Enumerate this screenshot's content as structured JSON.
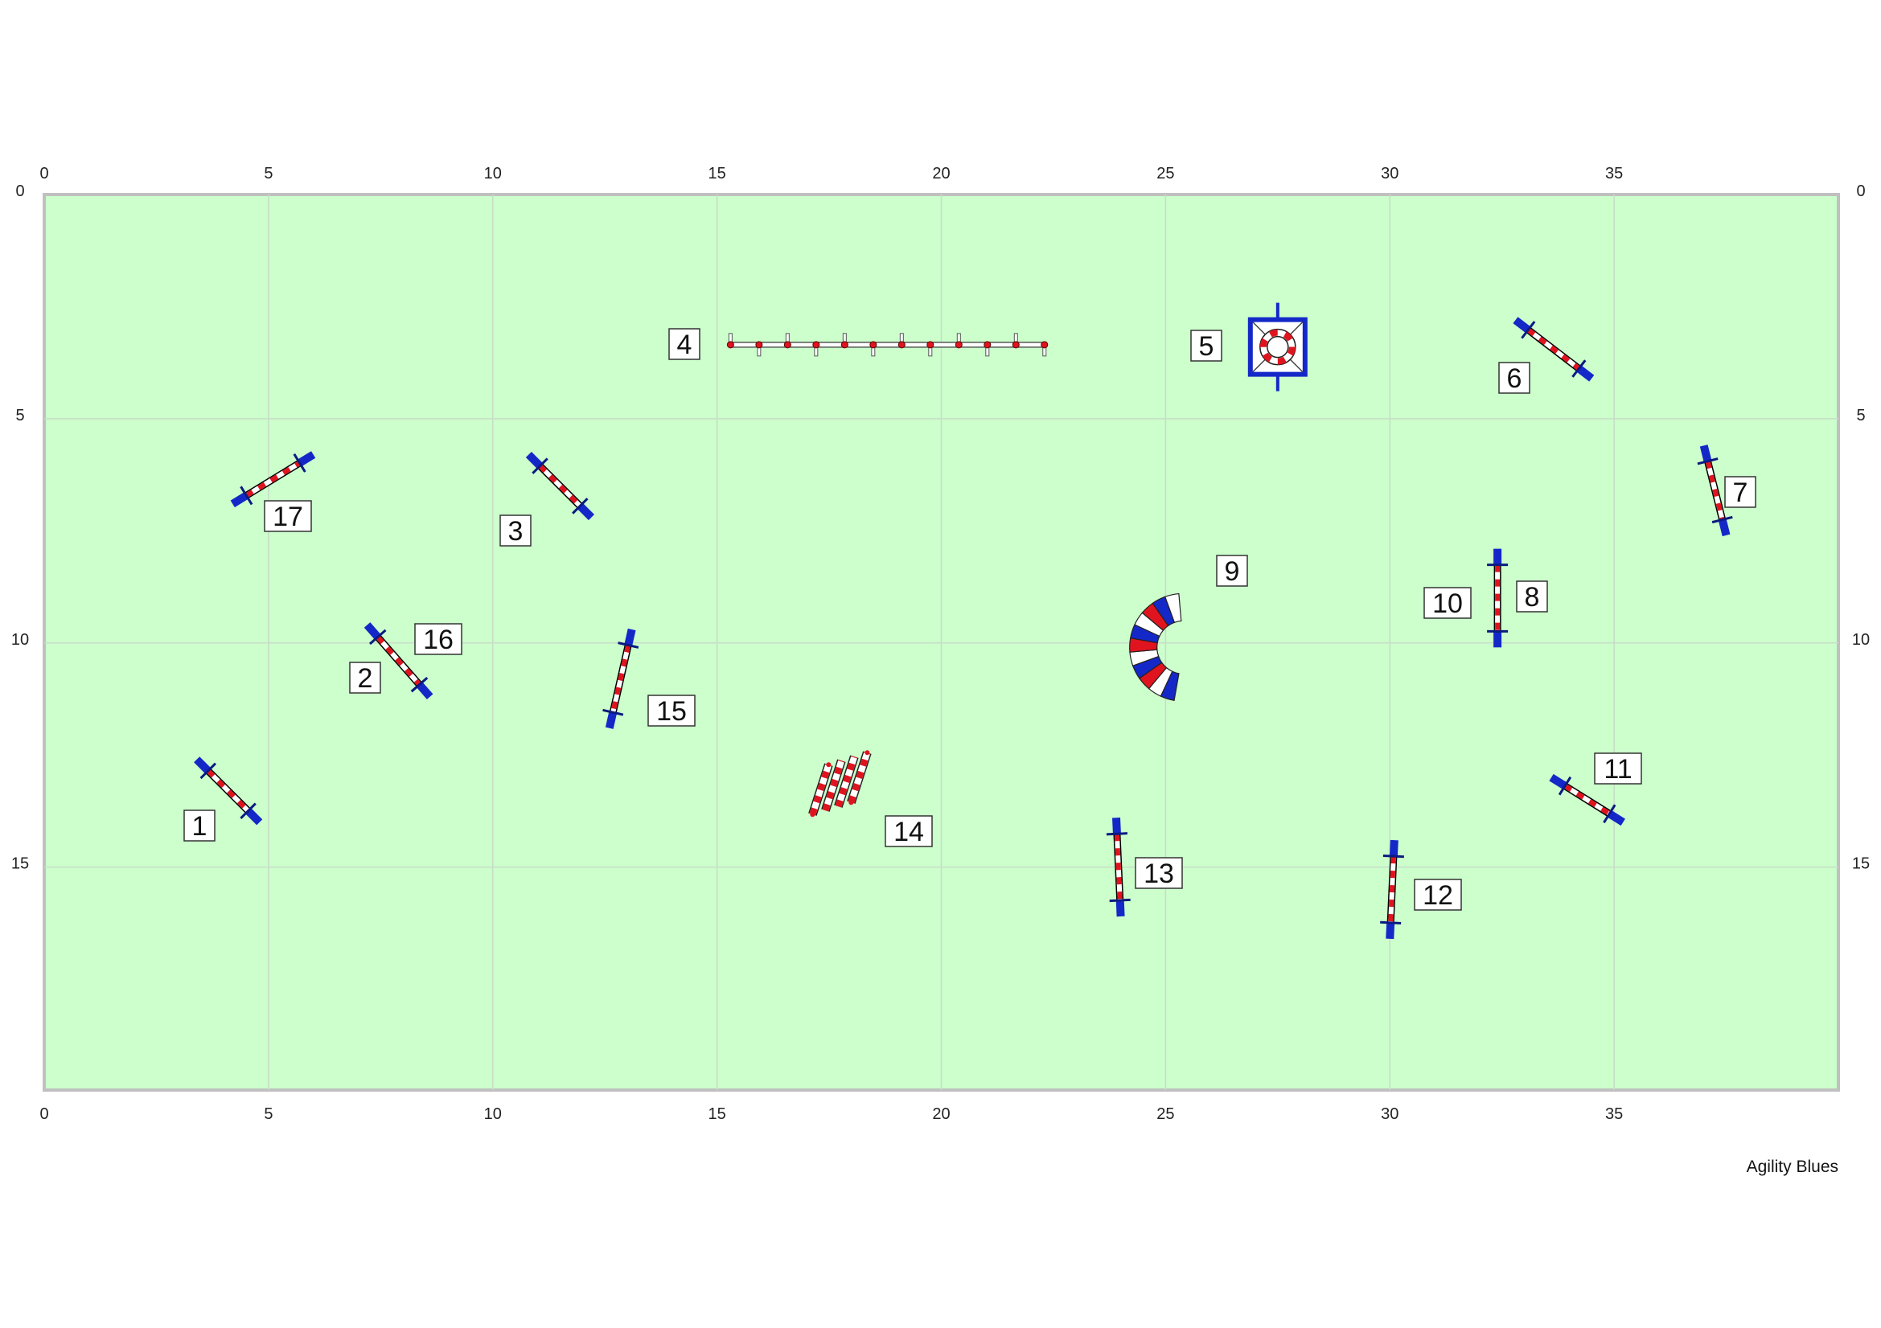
{
  "colors": {
    "field": "#ccffcc",
    "border": "#c0c0c0",
    "grid": "#c8dcc8",
    "wing": "#1428c8",
    "bar_red": "#e0141e",
    "bar_white": "#ffffff"
  },
  "axes": {
    "x_ticks": [
      "0",
      "5",
      "10",
      "15",
      "20",
      "25",
      "30",
      "35"
    ],
    "y_ticks": [
      "0",
      "5",
      "10",
      "15"
    ],
    "x_range": [
      0,
      40
    ],
    "y_range": [
      0,
      20
    ]
  },
  "credit": "Agility Blues",
  "obstacles": [
    {
      "number": "1",
      "type": "jump",
      "a": [
        3.4,
        12.6
      ],
      "b": [
        4.8,
        14.0
      ]
    },
    {
      "number": "2",
      "type": "jump",
      "a": [
        7.2,
        9.6
      ],
      "b": [
        8.6,
        11.2
      ]
    },
    {
      "number": "3",
      "type": "jump",
      "a": [
        10.8,
        5.8
      ],
      "b": [
        12.2,
        7.2
      ]
    },
    {
      "number": "4",
      "type": "weave",
      "a": [
        15.3,
        3.35
      ],
      "b": [
        22.3,
        3.35
      ],
      "poles": 12
    },
    {
      "number": "5",
      "type": "tire",
      "center": [
        27.5,
        3.4
      ]
    },
    {
      "number": "6",
      "type": "jump",
      "a": [
        32.8,
        2.8
      ],
      "b": [
        34.5,
        4.1
      ]
    },
    {
      "number": "7",
      "type": "jump",
      "a": [
        37.0,
        5.6
      ],
      "b": [
        37.5,
        7.6
      ]
    },
    {
      "number": "8",
      "type": "jump",
      "a": [
        32.4,
        7.9
      ],
      "b": [
        32.4,
        10.1
      ]
    },
    {
      "number": "9",
      "type": "tunnel",
      "center": [
        25.4,
        10.1
      ]
    },
    {
      "number": "10",
      "type": "label_only"
    },
    {
      "number": "11",
      "type": "jump",
      "a": [
        33.6,
        13.0
      ],
      "b": [
        35.2,
        14.0
      ]
    },
    {
      "number": "12",
      "type": "jump",
      "a": [
        30.1,
        14.4
      ],
      "b": [
        30.0,
        16.6
      ]
    },
    {
      "number": "13",
      "type": "jump",
      "a": [
        23.9,
        13.9
      ],
      "b": [
        24.0,
        16.1
      ]
    },
    {
      "number": "14",
      "type": "broad",
      "center": [
        17.9,
        13.2
      ]
    },
    {
      "number": "15",
      "type": "jump",
      "a": [
        13.1,
        9.7
      ],
      "b": [
        12.6,
        11.9
      ]
    },
    {
      "number": "16",
      "type": "label_only"
    },
    {
      "number": "17",
      "type": "jump",
      "a": [
        4.2,
        6.9
      ],
      "b": [
        6.0,
        5.8
      ]
    }
  ]
}
